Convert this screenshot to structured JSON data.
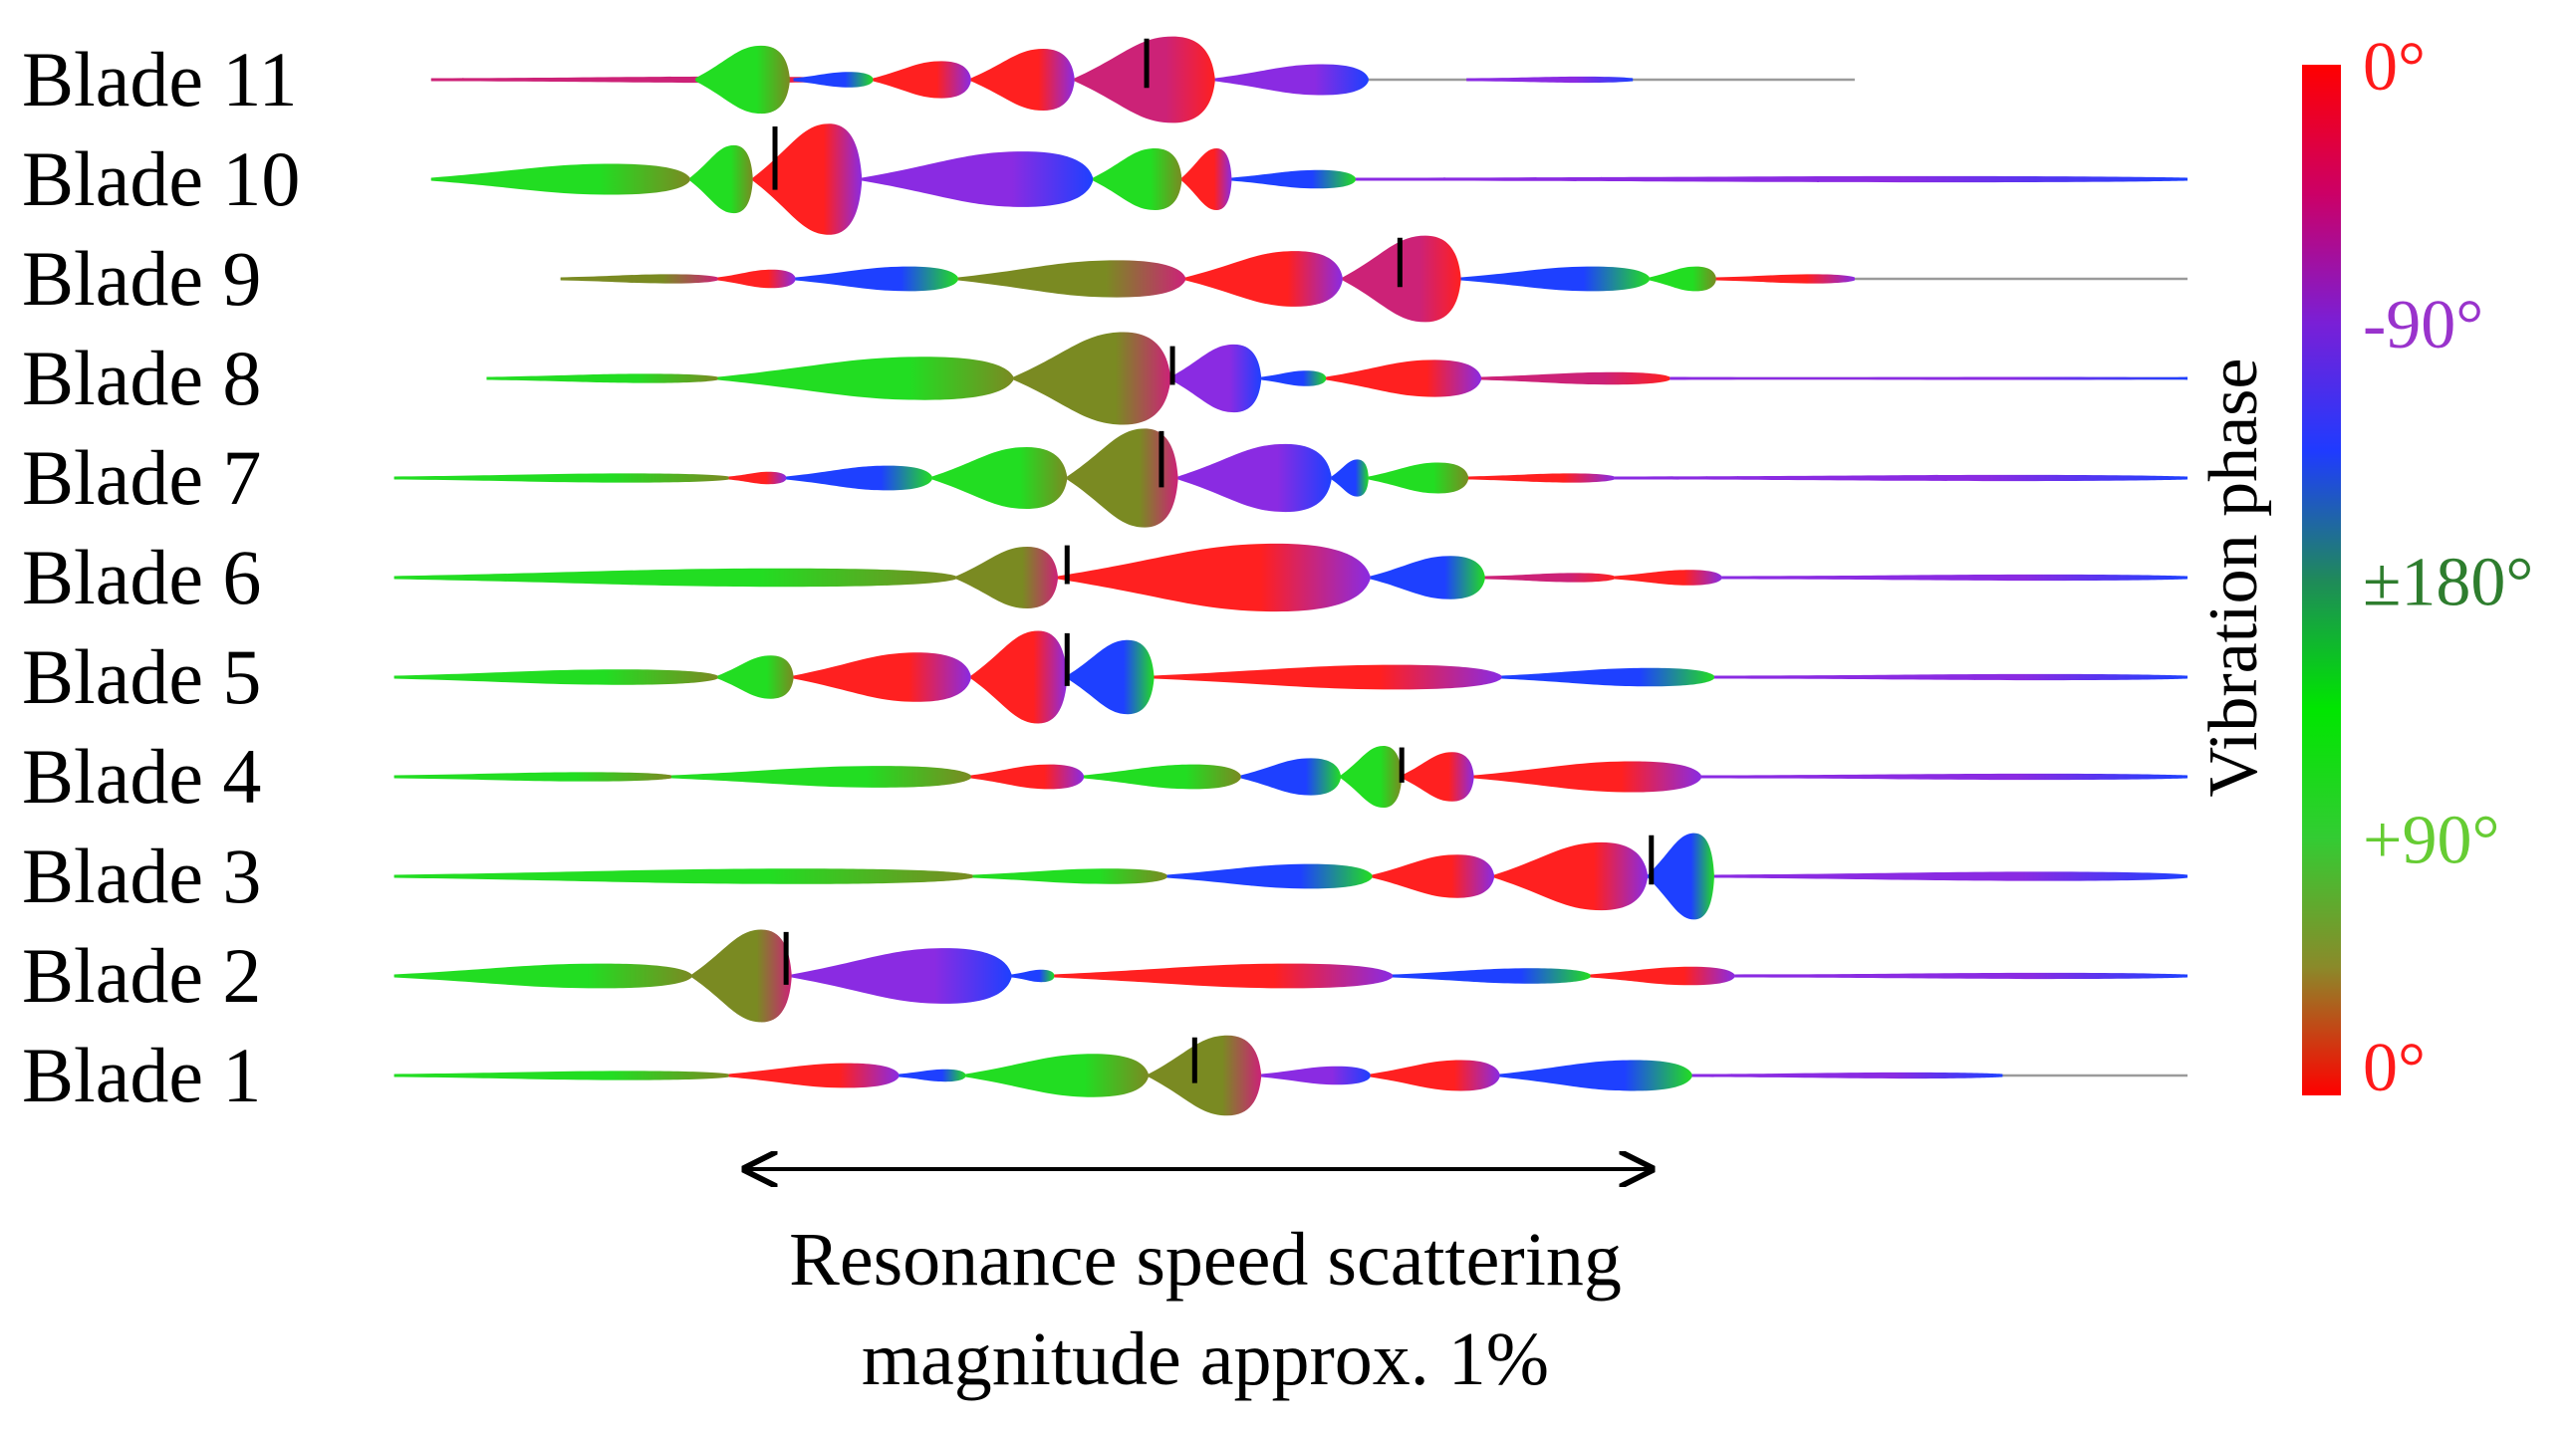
{
  "chart_data": {
    "type": "area",
    "title": "",
    "xlabel": "",
    "ylabel": "",
    "x_range": [
      0,
      100
    ],
    "annotation": {
      "line1": "Resonance speed scattering",
      "line2": "magnitude approx. 1%",
      "arrow_from_x": 22,
      "arrow_to_x": 71
    },
    "colorbar": {
      "title": "Vibration phase",
      "tick_labels": [
        "0°",
        "-90°",
        "±180°",
        "+90°",
        "0°"
      ],
      "tick_colors": [
        "#ff1a1a",
        "#9933cc",
        "#2e7d2e",
        "#66cc33",
        "#ff1a1a"
      ],
      "gradient": [
        "#ff0000",
        "#cc0066",
        "#7a1fd6",
        "#1f3bff",
        "#1f8a5a",
        "#00e600",
        "#33cc33",
        "#8a8a2a",
        "#ff0000"
      ]
    },
    "phase_colors": {
      "0": "#ff2020",
      "-90": "#8a2be2",
      "180": "#1e40ff",
      "+90": "#22dd22",
      "olive": "#7a8a22",
      "magenta": "#cc2277"
    },
    "series": [
      {
        "name": "Blade 11",
        "peak_x": 43.7,
        "lobes": [
          [
            5,
            28,
            2,
            5
          ],
          [
            19.3,
            24.4,
            22,
            3
          ],
          [
            24.6,
            28.9,
            5,
            2
          ],
          [
            28.9,
            34.2,
            12,
            0
          ],
          [
            34.2,
            39.8,
            20,
            0
          ],
          [
            39.8,
            47.4,
            28,
            5
          ],
          [
            47.4,
            55.7,
            10,
            1
          ],
          [
            61,
            70,
            2,
            1
          ]
        ],
        "tail_end": 82
      },
      {
        "name": "Blade 10",
        "peak_x": 23.6,
        "lobes": [
          [
            5,
            19,
            10,
            3
          ],
          [
            19,
            22.4,
            22,
            3
          ],
          [
            22.4,
            28.3,
            36,
            0
          ],
          [
            28.3,
            40.8,
            18,
            1
          ],
          [
            40.8,
            45.6,
            20,
            3
          ],
          [
            45.6,
            48.3,
            20,
            0
          ],
          [
            48.3,
            55,
            6,
            2
          ],
          [
            55,
            100,
            2,
            1
          ]
        ],
        "tail_end": 100
      },
      {
        "name": "Blade 9",
        "peak_x": 57.4,
        "lobes": [
          [
            12,
            20.5,
            3,
            4
          ],
          [
            20.5,
            24.7,
            6,
            0
          ],
          [
            24.7,
            33.5,
            8,
            2
          ],
          [
            33.5,
            45.8,
            12,
            4
          ],
          [
            45.8,
            54.3,
            18,
            0
          ],
          [
            54.3,
            60.7,
            28,
            5
          ],
          [
            60.7,
            70.9,
            8,
            2
          ],
          [
            70.9,
            74.5,
            8,
            3
          ],
          [
            74.5,
            82,
            3,
            0
          ]
        ],
        "tail_end": 100
      },
      {
        "name": "Blade 8",
        "peak_x": 45.1,
        "lobes": [
          [
            8,
            20.5,
            3,
            3
          ],
          [
            20.5,
            36.5,
            14,
            3
          ],
          [
            36.5,
            45,
            30,
            4
          ],
          [
            45,
            49.9,
            22,
            1
          ],
          [
            49.9,
            53.4,
            5,
            2
          ],
          [
            53.4,
            61.8,
            12,
            0
          ],
          [
            61.8,
            72,
            4,
            5
          ],
          [
            72,
            100,
            1,
            1
          ]
        ],
        "tail_end": 100
      },
      {
        "name": "Blade 7",
        "peak_x": 44.5,
        "lobes": [
          [
            3,
            21.1,
            3,
            3
          ],
          [
            21.1,
            24.2,
            4,
            0
          ],
          [
            24.2,
            32.1,
            8,
            2
          ],
          [
            32.1,
            39.4,
            20,
            3
          ],
          [
            39.4,
            45.4,
            32,
            4
          ],
          [
            45.4,
            53.7,
            22,
            1
          ],
          [
            53.7,
            55.7,
            12,
            2
          ],
          [
            55.7,
            61.1,
            10,
            3
          ],
          [
            61.1,
            69,
            3,
            0
          ],
          [
            69,
            100,
            2,
            1
          ]
        ],
        "tail_end": 100
      },
      {
        "name": "Blade 6",
        "peak_x": 39.4,
        "lobes": [
          [
            3,
            33.4,
            6,
            3
          ],
          [
            33.4,
            38.9,
            20,
            4
          ],
          [
            38.9,
            55.8,
            22,
            0
          ],
          [
            55.8,
            62,
            14,
            2
          ],
          [
            62,
            69,
            3,
            5
          ],
          [
            69,
            74.8,
            5,
            0
          ],
          [
            74.8,
            100,
            2,
            1
          ]
        ],
        "tail_end": 100
      },
      {
        "name": "Blade 5",
        "peak_x": 39.4,
        "lobes": [
          [
            3,
            20.5,
            5,
            3
          ],
          [
            20.5,
            24.6,
            14,
            3
          ],
          [
            24.6,
            34.2,
            16,
            0
          ],
          [
            34.2,
            39.4,
            30,
            0
          ],
          [
            39.4,
            44.1,
            24,
            2
          ],
          [
            44.1,
            62.9,
            8,
            0
          ],
          [
            62.9,
            74.4,
            6,
            2
          ],
          [
            74.4,
            100,
            2,
            1
          ]
        ],
        "tail_end": 100
      },
      {
        "name": "Blade 4",
        "peak_x": 57.5,
        "lobes": [
          [
            3,
            18,
            3,
            3
          ],
          [
            18,
            34.2,
            7,
            3
          ],
          [
            34.2,
            40.3,
            8,
            0
          ],
          [
            40.3,
            48.8,
            8,
            3
          ],
          [
            48.8,
            54.2,
            12,
            2
          ],
          [
            54.2,
            57.5,
            20,
            3
          ],
          [
            57.5,
            61.4,
            16,
            0
          ],
          [
            61.4,
            73.7,
            10,
            0
          ],
          [
            73.7,
            100,
            2,
            1
          ]
        ],
        "tail_end": 100
      },
      {
        "name": "Blade 3",
        "peak_x": 71,
        "lobes": [
          [
            3,
            34.3,
            5,
            3
          ],
          [
            34.3,
            44.8,
            5,
            3
          ],
          [
            44.8,
            55.9,
            8,
            2
          ],
          [
            55.9,
            62.5,
            14,
            0
          ],
          [
            62.5,
            70.8,
            22,
            0
          ],
          [
            70.8,
            74.4,
            28,
            2
          ],
          [
            74.4,
            100,
            3,
            1
          ]
        ],
        "tail_end": 100
      },
      {
        "name": "Blade 2",
        "peak_x": 24.2,
        "lobes": [
          [
            3,
            19.1,
            8,
            3
          ],
          [
            19.1,
            24.5,
            30,
            4
          ],
          [
            24.5,
            36.4,
            18,
            1
          ],
          [
            36.4,
            38.7,
            4,
            2
          ],
          [
            38.7,
            57,
            8,
            0
          ],
          [
            57,
            67.7,
            5,
            2
          ],
          [
            67.7,
            75.5,
            6,
            0
          ],
          [
            75.5,
            100,
            2,
            1
          ]
        ],
        "tail_end": 100
      },
      {
        "name": "Blade 1",
        "peak_x": 46.3,
        "lobes": [
          [
            3,
            21.1,
            3,
            3
          ],
          [
            21.1,
            30.3,
            8,
            0
          ],
          [
            30.3,
            33.9,
            4,
            2
          ],
          [
            33.9,
            43.8,
            14,
            3
          ],
          [
            43.8,
            49.9,
            26,
            4
          ],
          [
            49.9,
            55.8,
            6,
            1
          ],
          [
            55.8,
            62.8,
            10,
            0
          ],
          [
            62.8,
            73.2,
            10,
            2
          ],
          [
            73.2,
            90,
            2,
            1
          ]
        ],
        "tail_end": 100
      }
    ]
  }
}
